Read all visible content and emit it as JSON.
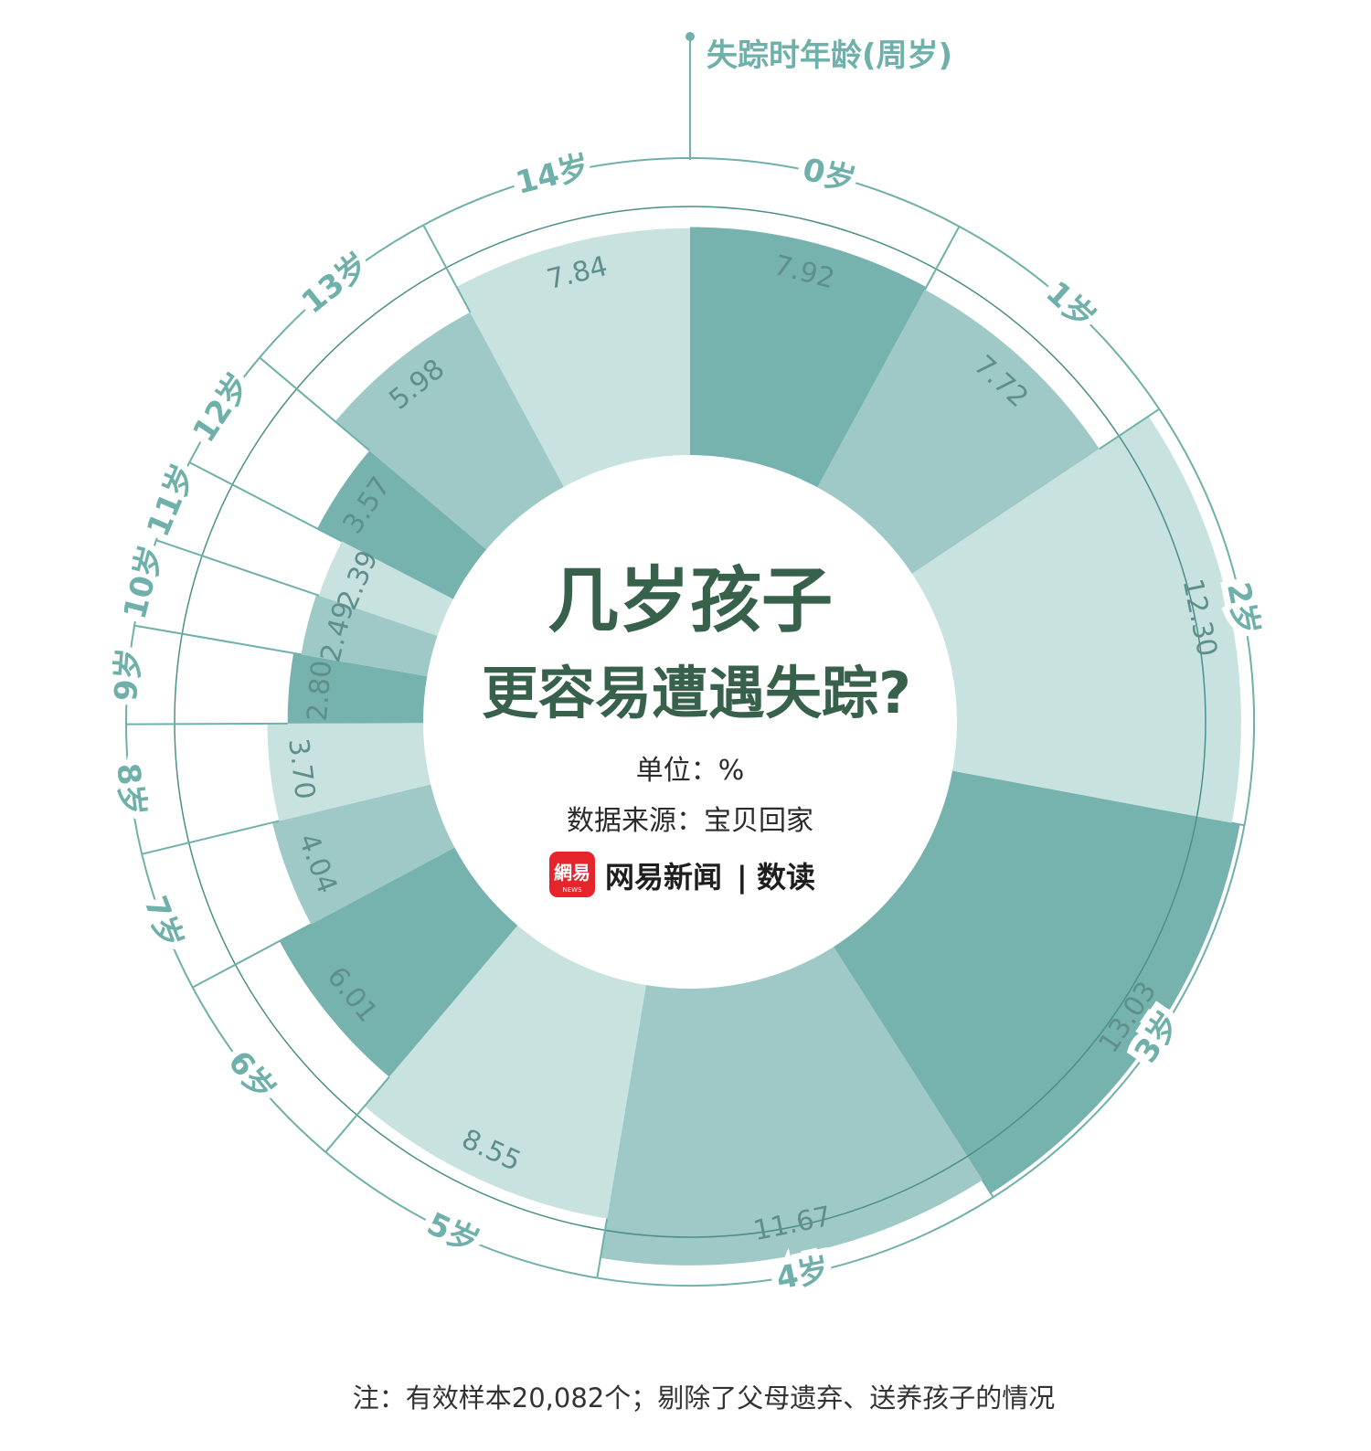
{
  "chart_data": {
    "type": "polar-bar",
    "title_line1": "几岁孩子",
    "title_line2": "更容易遭遇失踪?",
    "unit": "单位：%",
    "source": "数据来源：宝贝回家",
    "axis_title": "失踪时年龄(周岁)",
    "categories": [
      "0岁",
      "1岁",
      "2岁",
      "3岁",
      "4岁",
      "5岁",
      "6岁",
      "7岁",
      "8岁",
      "9岁",
      "10岁",
      "11岁",
      "12岁",
      "13岁",
      "14岁"
    ],
    "values": [
      7.92,
      7.72,
      12.3,
      13.03,
      11.67,
      8.55,
      6.01,
      4.04,
      3.7,
      2.8,
      2.49,
      2.39,
      3.57,
      5.98,
      7.84
    ],
    "value_labels": [
      "7.92",
      "7.72",
      "12.30",
      "13.03",
      "11.67",
      "8.55",
      "6.01",
      "4.04",
      "3.70",
      "2.80",
      "2.49",
      "2.39",
      "3.57",
      "5.98",
      "7.84"
    ]
  },
  "brand": {
    "logo_text": "網易",
    "logo_sub": "NEWS",
    "name": "网易新闻",
    "separator": "|",
    "section": "数读"
  },
  "footnote": "注：有效样本20,082个；剔除了父母遗弃、送养孩子的情况",
  "colors": {
    "dark": "#77b3ae",
    "mid": "#9fc9c6",
    "light": "#c8e2df",
    "line": "#6fb0aa",
    "inner_line": "#4b8f89",
    "title": "#37614a",
    "logo_red": "#e5242b"
  }
}
